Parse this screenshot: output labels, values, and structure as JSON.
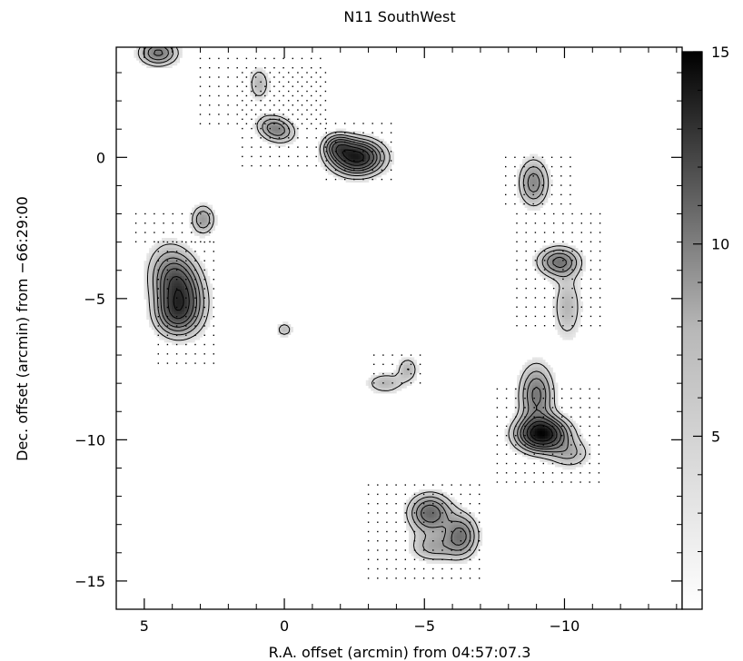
{
  "chart_data": {
    "type": "heatmap",
    "title": "N11 SouthWest",
    "xlabel": "R.A. offset (arcmin) from 04:57:07.3",
    "ylabel": "Dec. offset (arcmin) from −66:29:00",
    "xlim": [
      6,
      -14.2
    ],
    "ylim": [
      -16,
      3.9
    ],
    "x_ticks": [
      5,
      0,
      -5,
      -10
    ],
    "x_tick_labels": [
      "5",
      "0",
      "−5",
      "−10"
    ],
    "y_ticks": [
      0,
      -5,
      -10,
      -15
    ],
    "y_tick_labels": [
      "0",
      "−5",
      "−10",
      "−15"
    ],
    "colorbar": {
      "range": [
        0.5,
        15
      ],
      "ticks": [
        5,
        10,
        15
      ],
      "tick_labels": [
        "5",
        "10",
        "15"
      ]
    },
    "sources": [
      {
        "x": 3.8,
        "y": -4.6,
        "peak": 11,
        "sx": 0.55,
        "sy": 0.85,
        "rot": -0.3
      },
      {
        "x": 3.9,
        "y": -5.6,
        "peak": 6,
        "sx": 0.5,
        "sy": 0.5,
        "rot": 0
      },
      {
        "x": -2.6,
        "y": 0.0,
        "peak": 13,
        "sx": 0.6,
        "sy": 0.4,
        "rot": 0
      },
      {
        "x": -1.9,
        "y": 0.4,
        "peak": 6,
        "sx": 0.35,
        "sy": 0.3,
        "rot": 0
      },
      {
        "x": 0.3,
        "y": 1.0,
        "peak": 6.5,
        "sx": 0.45,
        "sy": 0.3,
        "rot": 0.3
      },
      {
        "x": 0.9,
        "y": 2.6,
        "peak": 3.5,
        "sx": 0.25,
        "sy": 0.4,
        "rot": 0
      },
      {
        "x": 4.5,
        "y": 3.7,
        "peak": 7,
        "sx": 0.45,
        "sy": 0.3,
        "rot": 0
      },
      {
        "x": 2.9,
        "y": -2.2,
        "peak": 5,
        "sx": 0.28,
        "sy": 0.35,
        "rot": 0
      },
      {
        "x": -8.9,
        "y": -0.9,
        "peak": 6,
        "sx": 0.35,
        "sy": 0.55,
        "rot": 0
      },
      {
        "x": -9.8,
        "y": -3.7,
        "peak": 7,
        "sx": 0.5,
        "sy": 0.35,
        "rot": 0
      },
      {
        "x": -10.1,
        "y": -5.3,
        "peak": 3.5,
        "sx": 0.35,
        "sy": 0.8,
        "rot": 0
      },
      {
        "x": -9.2,
        "y": -9.8,
        "peak": 14,
        "sx": 0.6,
        "sy": 0.4,
        "rot": 0
      },
      {
        "x": -9.0,
        "y": -8.4,
        "peak": 7,
        "sx": 0.4,
        "sy": 0.7,
        "rot": 0
      },
      {
        "x": -10.2,
        "y": -10.5,
        "peak": 3.5,
        "sx": 0.5,
        "sy": 0.35,
        "rot": 0
      },
      {
        "x": -5.2,
        "y": -12.6,
        "peak": 8,
        "sx": 0.5,
        "sy": 0.45,
        "rot": 0
      },
      {
        "x": -6.3,
        "y": -13.4,
        "peak": 7,
        "sx": 0.4,
        "sy": 0.5,
        "rot": 0
      },
      {
        "x": -5.3,
        "y": -13.8,
        "peak": 4,
        "sx": 0.55,
        "sy": 0.35,
        "rot": 0
      },
      {
        "x": -3.6,
        "y": -8.0,
        "peak": 3.5,
        "sx": 0.45,
        "sy": 0.25,
        "rot": 0
      },
      {
        "x": -4.4,
        "y": -7.5,
        "peak": 3.5,
        "sx": 0.25,
        "sy": 0.3,
        "rot": 0
      },
      {
        "x": 0.0,
        "y": -6.1,
        "peak": 3.2,
        "sx": 0.2,
        "sy": 0.18,
        "rot": 0
      }
    ],
    "contour_levels": [
      2,
      3.5,
      5,
      6.5,
      8,
      10,
      12
    ],
    "sampling_regions": [
      {
        "x1": 4.5,
        "x2": 2.5,
        "y1": -3.0,
        "y2": -7.5,
        "step": 0.33
      },
      {
        "x1": 5.3,
        "x2": 2.4,
        "y1": -2.0,
        "y2": -3.2,
        "step": 0.33
      },
      {
        "x1": 3.0,
        "x2": -1.5,
        "y1": 3.5,
        "y2": 1.0,
        "step": 0.33
      },
      {
        "x1": 1.5,
        "x2": -1.7,
        "y1": 3.0,
        "y2": -0.6,
        "step": 0.33
      },
      {
        "x1": -1.5,
        "x2": -4.0,
        "y1": 1.2,
        "y2": -0.9,
        "step": 0.33
      },
      {
        "x1": -7.9,
        "x2": -10.3,
        "y1": 0.0,
        "y2": -1.7,
        "step": 0.33
      },
      {
        "x1": -8.3,
        "x2": -11.3,
        "y1": -2.0,
        "y2": -6.0,
        "step": 0.33
      },
      {
        "x1": -7.6,
        "x2": -11.5,
        "y1": -8.2,
        "y2": -11.7,
        "step": 0.33
      },
      {
        "x1": -3.0,
        "x2": -7.2,
        "y1": -11.6,
        "y2": -15.2,
        "step": 0.33
      },
      {
        "x1": -3.2,
        "x2": -5.0,
        "y1": -7.0,
        "y2": -8.3,
        "step": 0.33
      }
    ]
  }
}
